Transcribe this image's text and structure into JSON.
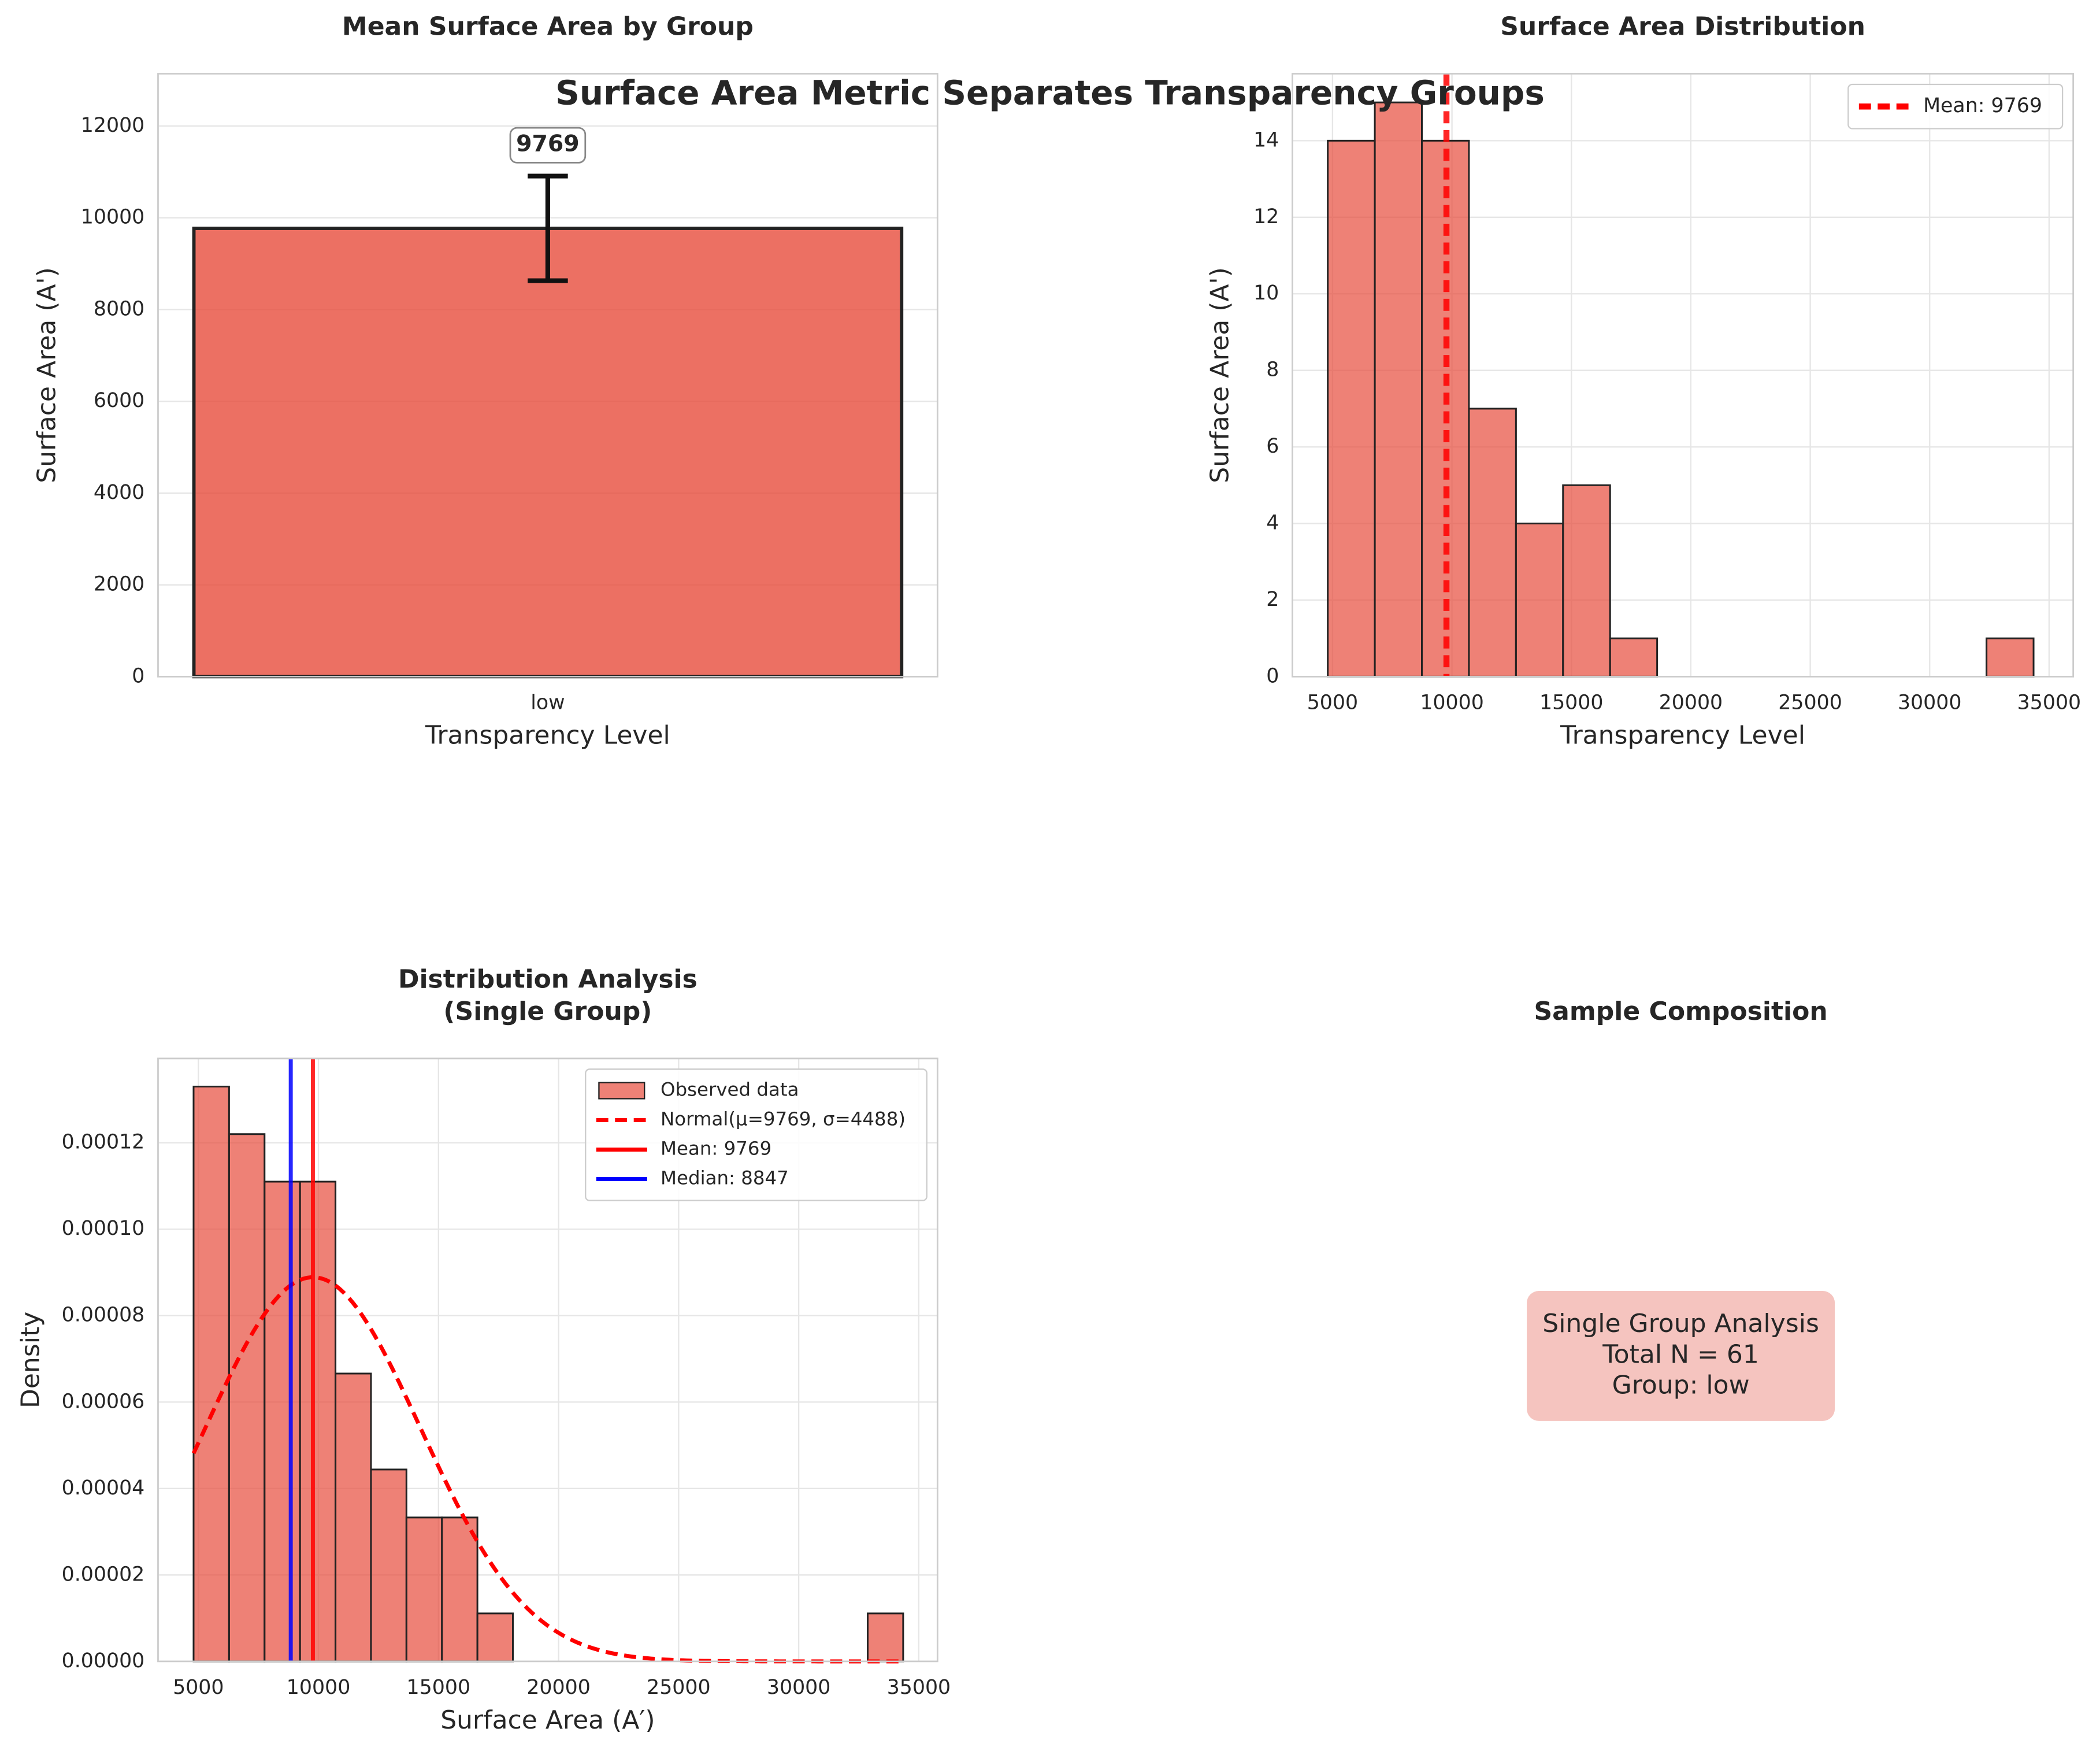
{
  "title": "Surface Area Metric Separates Transparency Groups",
  "chart_data": [
    {
      "type": "bar",
      "title": "Mean Surface Area by Group",
      "xlabel": "Transparency Level",
      "ylabel": "Surface Area (A')",
      "categories": [
        "low"
      ],
      "values": [
        9769
      ],
      "errors": [
        1140
      ],
      "value_labels": [
        "9769"
      ],
      "color": "#e74c3c",
      "ylim": [
        0,
        13140
      ],
      "yticks": [
        0,
        2000,
        4000,
        6000,
        8000,
        10000,
        12000
      ],
      "grid": true
    },
    {
      "type": "histogram",
      "title": "Surface Area Distribution",
      "xlabel": "Transparency Level",
      "ylabel": "Surface Area (A')",
      "bins": [
        4800,
        6770,
        8740,
        10710,
        12680,
        14650,
        16620,
        18590,
        20560,
        22530,
        24500,
        26470,
        28440,
        30410,
        32380,
        34350
      ],
      "values": [
        14,
        15,
        14,
        7,
        4,
        5,
        1,
        0,
        0,
        0,
        0,
        0,
        0,
        0,
        1
      ],
      "color": "#e74c3c",
      "lines": [
        {
          "name": "Mean: 9769",
          "value": 9769,
          "color": "#ff0000",
          "linestyle": "--"
        }
      ],
      "xlim": [
        3320,
        36010
      ],
      "xticks": [
        5000,
        10000,
        15000,
        20000,
        25000,
        30000,
        35000
      ],
      "ylim": [
        0,
        15.75
      ],
      "yticks": [
        0,
        2,
        4,
        6,
        8,
        10,
        12,
        14
      ],
      "grid": true,
      "legend": "upper right"
    },
    {
      "type": "histogram",
      "title": [
        "Distribution Analysis",
        "(Single Group)"
      ],
      "xlabel": "Surface Area (A′)",
      "ylabel": "Density",
      "hist_name": "Observed data",
      "bins": [
        4800,
        6277.5,
        7755,
        9232.5,
        10710,
        12187.5,
        13665,
        15142.5,
        16620,
        18097.5,
        19575,
        21052.5,
        22530,
        24007.5,
        25485,
        26962.5,
        28440,
        29917.5,
        31395,
        32872.5,
        34350
      ],
      "values": [
        0.000133,
        0.000122,
        0.000111,
        0.000111,
        6.66e-05,
        4.44e-05,
        3.33e-05,
        3.33e-05,
        1.11e-05,
        0,
        0,
        0,
        0,
        0,
        0,
        0,
        0,
        0,
        0,
        1.11e-05
      ],
      "color": "#e74c3c",
      "curve": {
        "name": "Normal(μ=9769, σ=4488)",
        "mu": 9769,
        "sigma": 4488,
        "color": "#ff0000",
        "linestyle": "--"
      },
      "lines": [
        {
          "name": "Mean: 9769",
          "value": 9769,
          "color": "#ff0000",
          "linestyle": "-"
        },
        {
          "name": "Median: 8847",
          "value": 8847,
          "color": "#0000ff",
          "linestyle": "-"
        }
      ],
      "xlim": [
        3320,
        35780
      ],
      "xticks": [
        5000,
        10000,
        15000,
        20000,
        25000,
        30000,
        35000
      ],
      "ylim": [
        0,
        0.0001395
      ],
      "yticks": [
        {
          "value": 0,
          "label": "0.00000"
        },
        2e-05,
        4e-05,
        6e-05,
        8e-05,
        {
          "value": 0.0001,
          "label": "0.00010"
        },
        {
          "value": 0.00012,
          "label": "0.00012"
        }
      ],
      "grid": true,
      "legend": "upper right"
    },
    {
      "type": "text",
      "title": "Sample Composition",
      "text": [
        "Single Group Analysis",
        "Total N = 61",
        "Group: low"
      ],
      "box_color": "#f5c4bf"
    }
  ]
}
